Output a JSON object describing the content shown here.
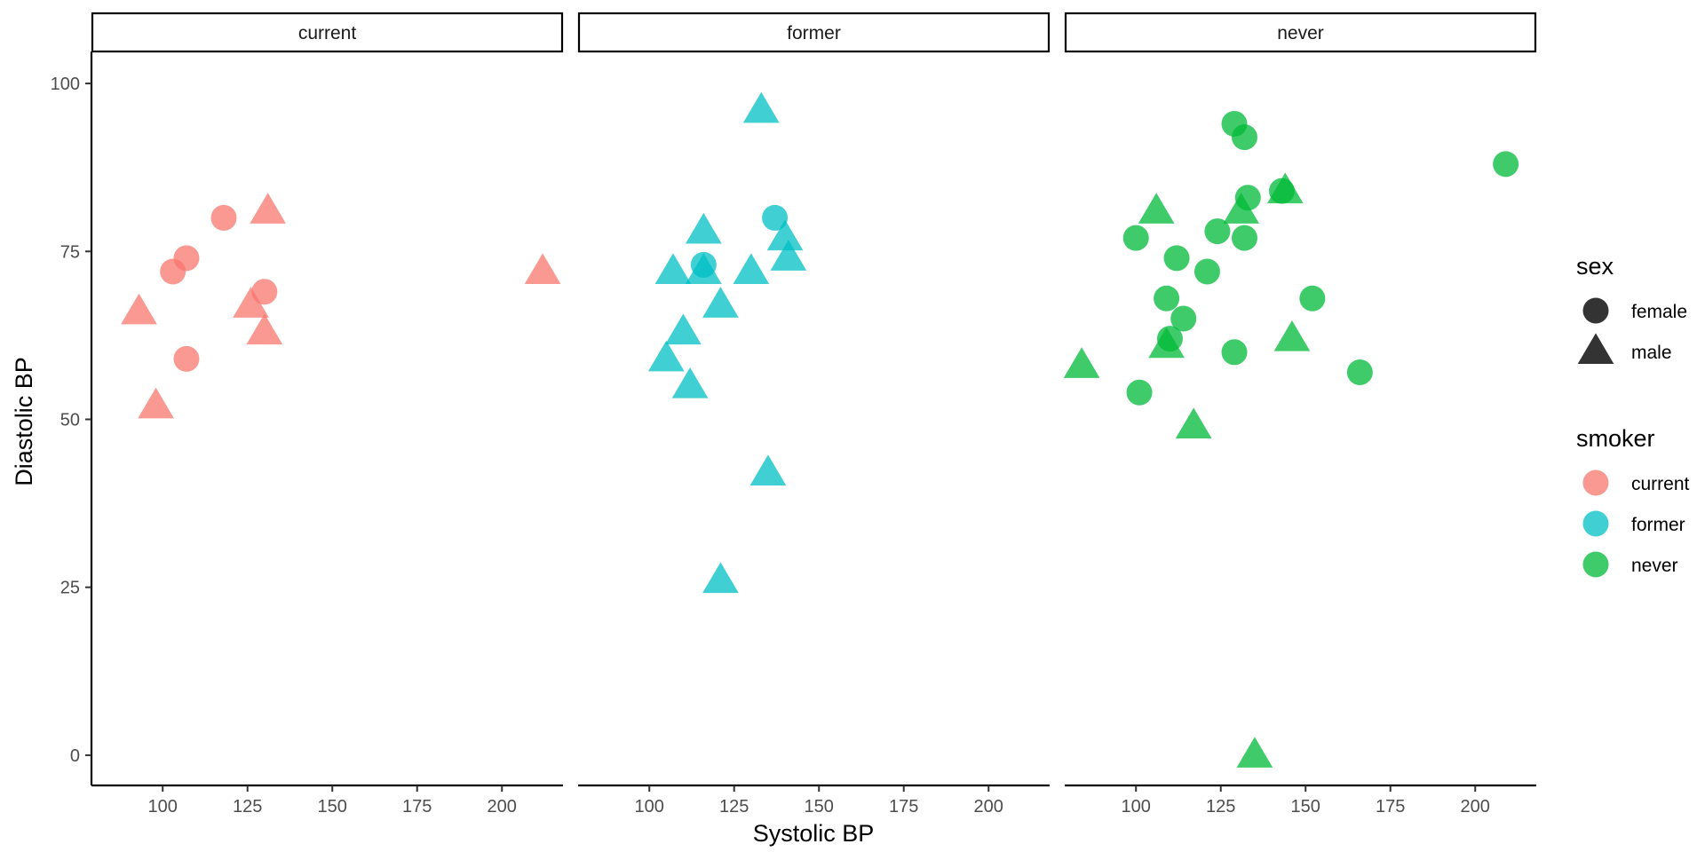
{
  "chart_data": {
    "type": "scatter",
    "facet_by": "smoker",
    "panels": [
      {
        "label": "current",
        "points": [
          {
            "x": 118,
            "y": 80,
            "sex": "female"
          },
          {
            "x": 107,
            "y": 74,
            "sex": "female"
          },
          {
            "x": 103,
            "y": 72,
            "sex": "female"
          },
          {
            "x": 130,
            "y": 69,
            "sex": "female"
          },
          {
            "x": 107,
            "y": 59,
            "sex": "female"
          },
          {
            "x": 131,
            "y": 81,
            "sex": "male"
          },
          {
            "x": 212,
            "y": 72,
            "sex": "male"
          },
          {
            "x": 126,
            "y": 67,
            "sex": "male"
          },
          {
            "x": 93,
            "y": 66,
            "sex": "male"
          },
          {
            "x": 130,
            "y": 63,
            "sex": "male"
          },
          {
            "x": 98,
            "y": 52,
            "sex": "male"
          }
        ]
      },
      {
        "label": "former",
        "points": [
          {
            "x": 137,
            "y": 80,
            "sex": "female"
          },
          {
            "x": 116,
            "y": 73,
            "sex": "female"
          },
          {
            "x": 133,
            "y": 96,
            "sex": "male"
          },
          {
            "x": 116,
            "y": 78,
            "sex": "male"
          },
          {
            "x": 140,
            "y": 77,
            "sex": "male"
          },
          {
            "x": 141,
            "y": 74,
            "sex": "male"
          },
          {
            "x": 107,
            "y": 72,
            "sex": "male"
          },
          {
            "x": 116,
            "y": 72,
            "sex": "male"
          },
          {
            "x": 130,
            "y": 72,
            "sex": "male"
          },
          {
            "x": 121,
            "y": 67,
            "sex": "male"
          },
          {
            "x": 110,
            "y": 63,
            "sex": "male"
          },
          {
            "x": 105,
            "y": 59,
            "sex": "male"
          },
          {
            "x": 112,
            "y": 55,
            "sex": "male"
          },
          {
            "x": 135,
            "y": 42,
            "sex": "male"
          },
          {
            "x": 121,
            "y": 26,
            "sex": "male"
          }
        ]
      },
      {
        "label": "never",
        "points": [
          {
            "x": 129,
            "y": 94,
            "sex": "female"
          },
          {
            "x": 132,
            "y": 92,
            "sex": "female"
          },
          {
            "x": 209,
            "y": 88,
            "sex": "female"
          },
          {
            "x": 143,
            "y": 84,
            "sex": "female"
          },
          {
            "x": 133,
            "y": 83,
            "sex": "female"
          },
          {
            "x": 124,
            "y": 78,
            "sex": "female"
          },
          {
            "x": 100,
            "y": 77,
            "sex": "female"
          },
          {
            "x": 132,
            "y": 77,
            "sex": "female"
          },
          {
            "x": 112,
            "y": 74,
            "sex": "female"
          },
          {
            "x": 121,
            "y": 72,
            "sex": "female"
          },
          {
            "x": 109,
            "y": 68,
            "sex": "female"
          },
          {
            "x": 152,
            "y": 68,
            "sex": "female"
          },
          {
            "x": 114,
            "y": 65,
            "sex": "female"
          },
          {
            "x": 110,
            "y": 62,
            "sex": "female"
          },
          {
            "x": 129,
            "y": 60,
            "sex": "female"
          },
          {
            "x": 166,
            "y": 57,
            "sex": "female"
          },
          {
            "x": 101,
            "y": 54,
            "sex": "female"
          },
          {
            "x": 144,
            "y": 84,
            "sex": "male"
          },
          {
            "x": 106,
            "y": 81,
            "sex": "male"
          },
          {
            "x": 131,
            "y": 81,
            "sex": "male"
          },
          {
            "x": 146,
            "y": 62,
            "sex": "male"
          },
          {
            "x": 109,
            "y": 61,
            "sex": "male"
          },
          {
            "x": 84,
            "y": 58,
            "sex": "male"
          },
          {
            "x": 117,
            "y": 49,
            "sex": "male"
          },
          {
            "x": 135,
            "y": 0,
            "sex": "male"
          }
        ]
      }
    ],
    "xlabel": "Systolic BP",
    "ylabel": "Diastolic BP",
    "xlim": [
      79,
      218
    ],
    "ylim": [
      -4.5,
      104.5
    ],
    "x_ticks": [
      100,
      125,
      150,
      175,
      200
    ],
    "y_ticks": [
      0,
      25,
      50,
      75,
      100
    ],
    "grid": false,
    "legend_position": "right",
    "legends": [
      {
        "title": "sex",
        "aesthetic": "shape",
        "entries": [
          {
            "label": "female",
            "shape": "circle"
          },
          {
            "label": "male",
            "shape": "triangle"
          }
        ]
      },
      {
        "title": "smoker",
        "aesthetic": "color",
        "entries": [
          {
            "label": "current",
            "color": "#F8766D"
          },
          {
            "label": "former",
            "color": "#00BFC4"
          },
          {
            "label": "never",
            "color": "#00BA38"
          }
        ]
      }
    ],
    "colors": {
      "current": "#F8766D",
      "former": "#00BFC4",
      "never": "#00BA38"
    }
  }
}
